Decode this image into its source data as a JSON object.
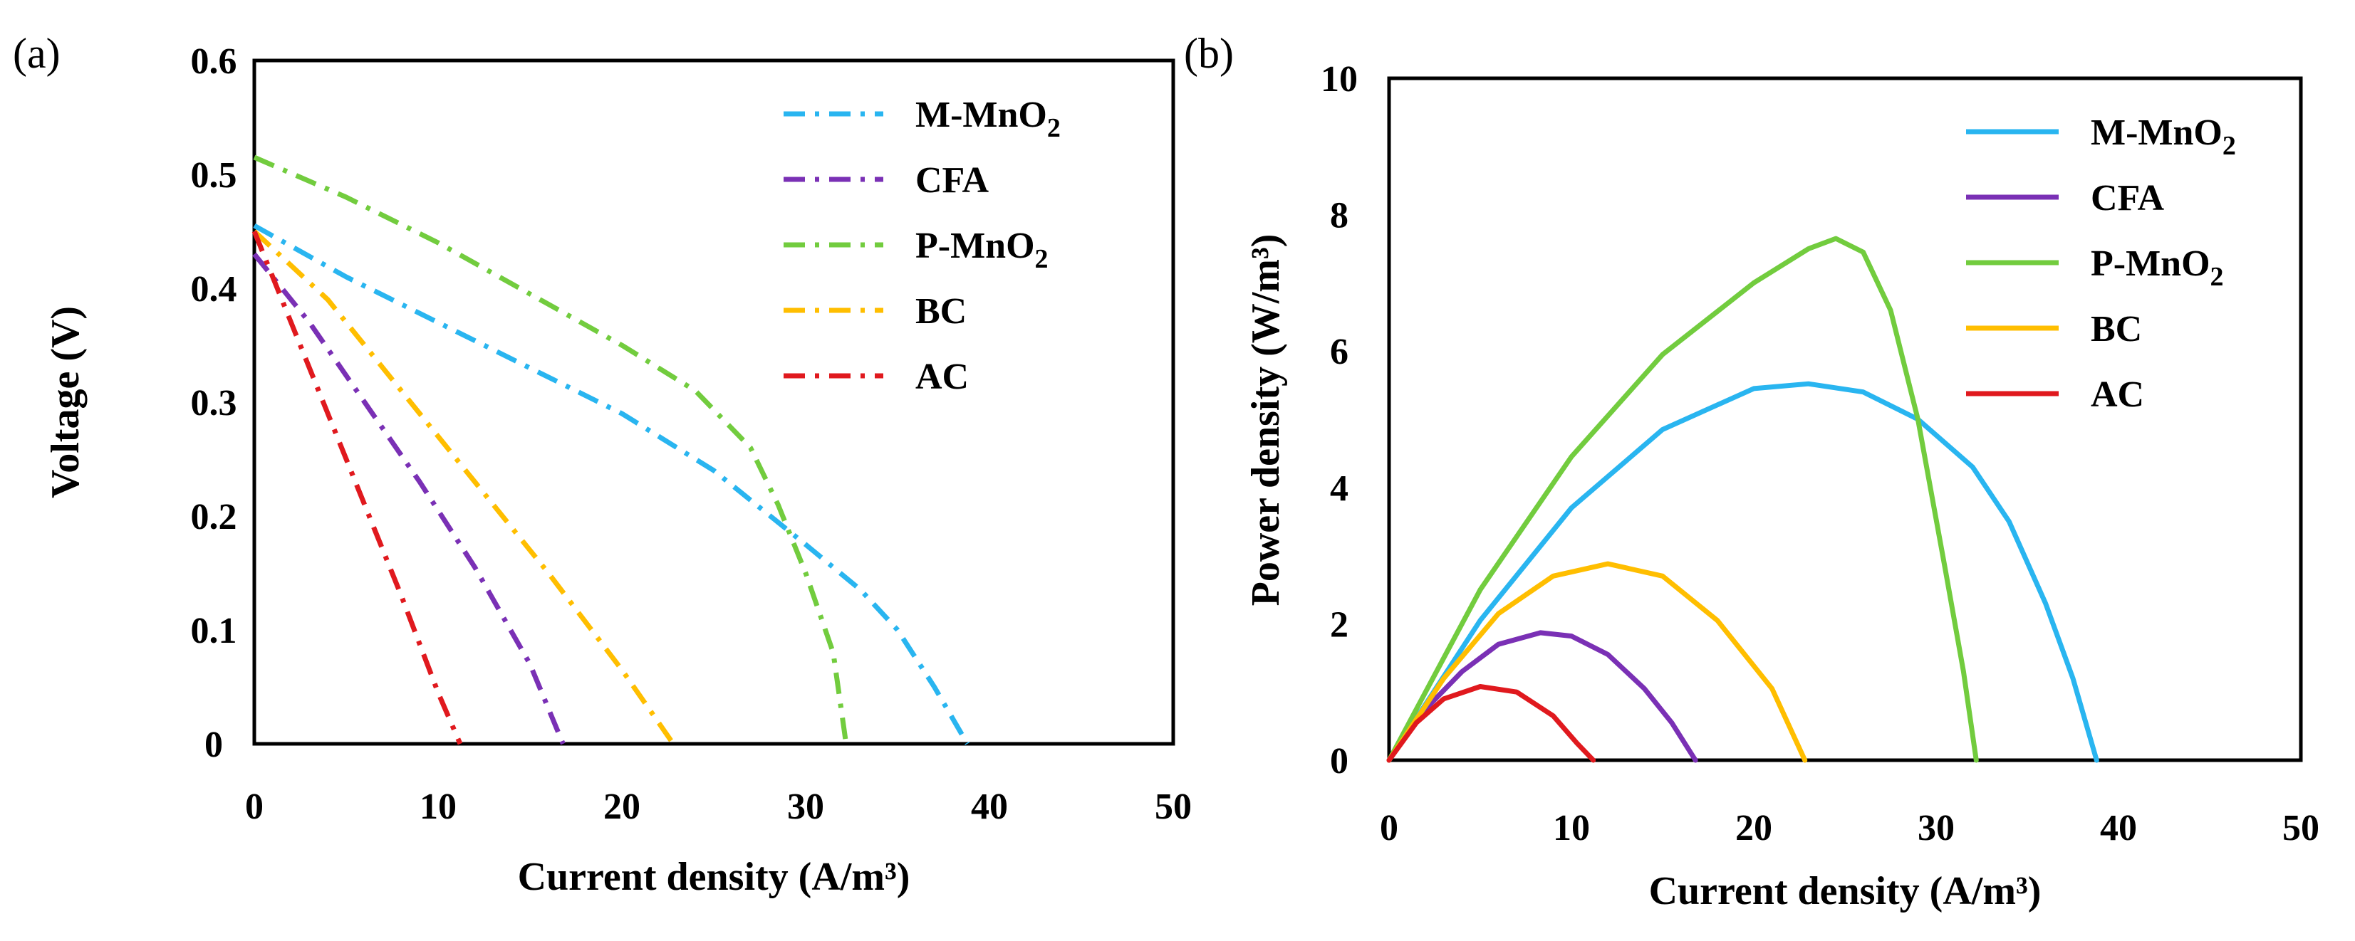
{
  "chart_data": [
    {
      "panel_label": "(a)",
      "type": "line",
      "line_style": "dash-dot",
      "xlabel": "Current density (A/m³)",
      "ylabel": "Voltage (V)",
      "xlim": [
        0,
        50
      ],
      "ylim": [
        0,
        0.6
      ],
      "xticks": [
        "0",
        "10",
        "20",
        "30",
        "40",
        "50"
      ],
      "yticks": [
        "0",
        "0.1",
        "0.2",
        "0.3",
        "0.4",
        "0.5",
        "0.6"
      ],
      "legend": "top-right",
      "series": [
        {
          "name": "M-MnO",
          "sub": "2",
          "color": "#29B5F0",
          "x": [
            0,
            5,
            10,
            15,
            20,
            25,
            30,
            33,
            35,
            37,
            38.8
          ],
          "y": [
            0.455,
            0.41,
            0.37,
            0.33,
            0.29,
            0.24,
            0.175,
            0.135,
            0.1,
            0.05,
            0
          ]
        },
        {
          "name": "CFA",
          "sub": "",
          "color": "#7A30B5",
          "x": [
            0,
            3,
            6,
            9,
            12,
            15,
            16.8
          ],
          "y": [
            0.43,
            0.37,
            0.3,
            0.23,
            0.155,
            0.07,
            0
          ]
        },
        {
          "name": "P-MnO",
          "sub": "2",
          "color": "#72CC3E",
          "x": [
            0,
            5,
            10,
            15,
            20,
            24,
            27,
            28.5,
            30,
            31.5,
            32.2
          ],
          "y": [
            0.515,
            0.48,
            0.44,
            0.395,
            0.35,
            0.31,
            0.26,
            0.21,
            0.15,
            0.08,
            0
          ]
        },
        {
          "name": "BC",
          "sub": "",
          "color": "#FFBE00",
          "x": [
            0,
            4,
            8,
            12,
            16,
            20,
            22.8
          ],
          "y": [
            0.45,
            0.39,
            0.31,
            0.23,
            0.15,
            0.065,
            0
          ]
        },
        {
          "name": "AC",
          "sub": "",
          "color": "#E0191E",
          "x": [
            0,
            2,
            4,
            6,
            8,
            10,
            11.2
          ],
          "y": [
            0.45,
            0.37,
            0.29,
            0.21,
            0.13,
            0.045,
            0
          ]
        }
      ]
    },
    {
      "panel_label": "(b)",
      "type": "line",
      "line_style": "solid",
      "xlabel": "Current density (A/m³)",
      "ylabel": "Power density (W/m³)",
      "xlim": [
        0,
        50
      ],
      "ylim": [
        0,
        10
      ],
      "xticks": [
        "0",
        "10",
        "20",
        "30",
        "40",
        "50"
      ],
      "yticks": [
        "0",
        "2",
        "4",
        "6",
        "8",
        "10"
      ],
      "legend": "top-right",
      "series": [
        {
          "name": "M-MnO",
          "sub": "2",
          "color": "#29B5F0",
          "x": [
            0,
            5,
            10,
            15,
            20,
            23,
            26,
            29,
            32,
            34,
            36,
            37.5,
            38.8
          ],
          "y": [
            0,
            2.05,
            3.7,
            4.85,
            5.45,
            5.52,
            5.4,
            5.0,
            4.3,
            3.5,
            2.3,
            1.2,
            0
          ]
        },
        {
          "name": "CFA",
          "sub": "",
          "color": "#7A30B5",
          "x": [
            0,
            2,
            4,
            6,
            8.3,
            10,
            12,
            14,
            15.5,
            16.8
          ],
          "y": [
            0,
            0.75,
            1.3,
            1.7,
            1.87,
            1.82,
            1.55,
            1.05,
            0.55,
            0
          ]
        },
        {
          "name": "P-MnO",
          "sub": "2",
          "color": "#72CC3E",
          "x": [
            0,
            5,
            10,
            15,
            20,
            23,
            24.5,
            26,
            27.5,
            29,
            30.5,
            31.5,
            32.2
          ],
          "y": [
            0,
            2.5,
            4.45,
            5.95,
            7.0,
            7.5,
            7.65,
            7.45,
            6.6,
            5.0,
            2.8,
            1.3,
            0
          ]
        },
        {
          "name": "BC",
          "sub": "",
          "color": "#FFBE00",
          "x": [
            0,
            3,
            6,
            9,
            12,
            15,
            18,
            21,
            22.8
          ],
          "y": [
            0,
            1.2,
            2.15,
            2.7,
            2.88,
            2.7,
            2.05,
            1.05,
            0
          ]
        },
        {
          "name": "AC",
          "sub": "",
          "color": "#E0191E",
          "x": [
            0,
            1.5,
            3,
            5,
            7,
            9,
            10.3,
            11.2
          ],
          "y": [
            0,
            0.55,
            0.9,
            1.08,
            1.0,
            0.65,
            0.25,
            0
          ]
        }
      ]
    }
  ]
}
